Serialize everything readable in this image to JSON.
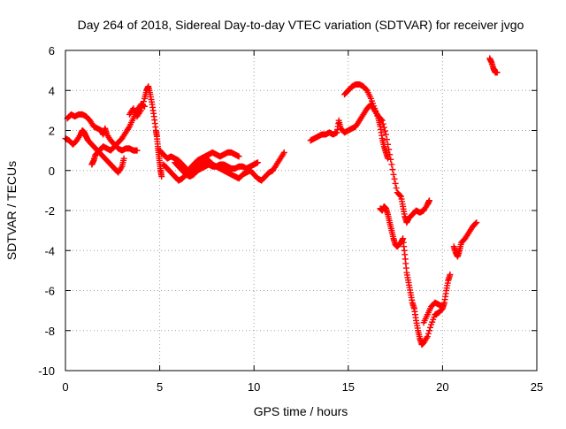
{
  "chart_data": {
    "type": "scatter",
    "title": "Day 264 of 2018, Sidereal Day-to-day VTEC variation (SDTVAR) for receiver jvgo",
    "xlabel": "GPS time / hours",
    "ylabel": "SDTVAR / TECUs",
    "xlim": [
      0,
      25
    ],
    "ylim": [
      -10,
      6
    ],
    "xticks": [
      0,
      5,
      10,
      15,
      20,
      25
    ],
    "yticks": [
      -10,
      -8,
      -6,
      -4,
      -2,
      0,
      2,
      4,
      6
    ],
    "grid": true,
    "marker": "+",
    "color": "#ff0000",
    "series": [
      {
        "values": [
          [
            0.0,
            1.6
          ],
          [
            0.2,
            1.5
          ],
          [
            0.4,
            1.3
          ],
          [
            0.6,
            1.5
          ],
          [
            0.8,
            1.8
          ],
          [
            0.9,
            2.0
          ],
          [
            1.0,
            1.9
          ],
          [
            1.1,
            1.7
          ],
          [
            1.2,
            1.5
          ],
          [
            1.4,
            1.3
          ],
          [
            1.6,
            1.1
          ],
          [
            1.8,
            0.9
          ],
          [
            2.0,
            0.7
          ],
          [
            2.2,
            0.5
          ],
          [
            2.4,
            0.3
          ],
          [
            2.6,
            0.1
          ],
          [
            2.8,
            -0.1
          ],
          [
            3.0,
            0.2
          ],
          [
            3.1,
            0.6
          ]
        ]
      },
      {
        "values": [
          [
            0.1,
            2.6
          ],
          [
            0.3,
            2.8
          ],
          [
            0.5,
            2.7
          ],
          [
            0.7,
            2.8
          ],
          [
            0.9,
            2.8
          ],
          [
            1.1,
            2.7
          ],
          [
            1.3,
            2.5
          ],
          [
            1.5,
            2.2
          ],
          [
            1.7,
            2.1
          ],
          [
            1.9,
            2.0
          ],
          [
            2.0,
            1.8
          ],
          [
            2.1,
            2.1
          ],
          [
            2.2,
            1.8
          ],
          [
            2.4,
            1.5
          ],
          [
            2.6,
            1.3
          ],
          [
            2.8,
            1.1
          ],
          [
            3.0,
            1.0
          ],
          [
            3.2,
            1.1
          ],
          [
            3.4,
            1.1
          ],
          [
            3.6,
            1.0
          ],
          [
            3.8,
            1.0
          ]
        ]
      },
      {
        "values": [
          [
            1.4,
            0.3
          ],
          [
            1.5,
            0.5
          ],
          [
            1.6,
            0.8
          ],
          [
            1.8,
            1.0
          ],
          [
            2.0,
            1.2
          ],
          [
            2.2,
            1.1
          ],
          [
            2.4,
            1.0
          ],
          [
            2.6,
            1.2
          ],
          [
            2.8,
            1.4
          ],
          [
            3.0,
            1.6
          ],
          [
            3.2,
            1.9
          ],
          [
            3.4,
            2.2
          ],
          [
            3.6,
            2.6
          ],
          [
            3.8,
            3.0
          ],
          [
            4.0,
            3.3
          ],
          [
            4.2,
            3.2
          ]
        ]
      },
      {
        "values": [
          [
            3.4,
            2.8
          ],
          [
            3.6,
            3.1
          ],
          [
            3.8,
            2.7
          ],
          [
            4.0,
            3.0
          ],
          [
            4.2,
            3.6
          ],
          [
            4.3,
            4.0
          ],
          [
            4.4,
            4.2
          ],
          [
            4.5,
            3.8
          ],
          [
            4.6,
            3.3
          ],
          [
            4.7,
            2.7
          ],
          [
            4.8,
            2.0
          ],
          [
            4.85,
            1.7
          ],
          [
            4.9,
            1.2
          ],
          [
            4.95,
            0.8
          ],
          [
            5.0,
            0.4
          ],
          [
            5.05,
            0.0
          ],
          [
            5.1,
            -0.3
          ]
        ]
      },
      {
        "values": [
          [
            5.0,
            1.0
          ],
          [
            5.2,
            0.8
          ],
          [
            5.4,
            0.6
          ],
          [
            5.6,
            0.7
          ],
          [
            5.8,
            0.6
          ],
          [
            6.0,
            0.5
          ],
          [
            6.2,
            0.3
          ],
          [
            6.4,
            0.1
          ],
          [
            6.6,
            -0.1
          ],
          [
            6.8,
            0.0
          ],
          [
            7.0,
            0.2
          ],
          [
            7.2,
            0.3
          ],
          [
            7.4,
            0.4
          ],
          [
            7.6,
            0.5
          ],
          [
            7.8,
            0.3
          ],
          [
            8.0,
            0.2
          ],
          [
            8.2,
            0.1
          ],
          [
            8.4,
            0.0
          ],
          [
            8.6,
            -0.1
          ],
          [
            8.8,
            -0.2
          ],
          [
            9.0,
            -0.3
          ],
          [
            9.2,
            -0.4
          ],
          [
            9.4,
            -0.2
          ],
          [
            9.6,
            -0.1
          ],
          [
            9.8,
            0.0
          ],
          [
            10.0,
            -0.2
          ],
          [
            10.2,
            -0.4
          ],
          [
            10.4,
            -0.5
          ],
          [
            10.6,
            -0.3
          ],
          [
            10.8,
            -0.1
          ],
          [
            11.0,
            0.0
          ],
          [
            11.2,
            0.3
          ],
          [
            11.4,
            0.6
          ],
          [
            11.6,
            0.9
          ]
        ]
      },
      {
        "values": [
          [
            5.2,
            0.3
          ],
          [
            5.4,
            0.1
          ],
          [
            5.6,
            -0.1
          ],
          [
            5.8,
            -0.3
          ],
          [
            6.0,
            -0.5
          ],
          [
            6.2,
            -0.4
          ],
          [
            6.4,
            -0.2
          ],
          [
            6.6,
            0.1
          ],
          [
            6.8,
            0.3
          ],
          [
            7.0,
            0.5
          ],
          [
            7.2,
            0.6
          ],
          [
            7.4,
            0.7
          ],
          [
            7.6,
            0.8
          ],
          [
            7.8,
            0.9
          ],
          [
            8.0,
            0.8
          ],
          [
            8.2,
            0.7
          ],
          [
            8.4,
            0.8
          ],
          [
            8.6,
            0.9
          ],
          [
            8.8,
            0.9
          ],
          [
            9.0,
            0.8
          ],
          [
            9.2,
            0.7
          ]
        ]
      },
      {
        "values": [
          [
            5.8,
            0.4
          ],
          [
            6.0,
            0.2
          ],
          [
            6.2,
            0.0
          ],
          [
            6.4,
            -0.2
          ],
          [
            6.6,
            -0.3
          ],
          [
            6.8,
            -0.2
          ],
          [
            7.0,
            0.0
          ],
          [
            7.2,
            0.1
          ],
          [
            7.4,
            0.2
          ],
          [
            7.6,
            0.3
          ],
          [
            7.8,
            0.2
          ],
          [
            8.0,
            0.2
          ],
          [
            8.2,
            0.3
          ],
          [
            8.4,
            0.3
          ],
          [
            8.6,
            0.2
          ],
          [
            8.8,
            0.1
          ],
          [
            9.0,
            0.1
          ],
          [
            9.2,
            0.2
          ],
          [
            9.4,
            0.2
          ],
          [
            9.6,
            0.1
          ],
          [
            9.8,
            0.2
          ],
          [
            10.0,
            0.3
          ],
          [
            10.2,
            0.4
          ]
        ]
      },
      {
        "values": [
          [
            13.0,
            1.5
          ],
          [
            13.2,
            1.6
          ],
          [
            13.4,
            1.7
          ],
          [
            13.6,
            1.8
          ],
          [
            13.8,
            1.8
          ],
          [
            14.0,
            1.9
          ],
          [
            14.2,
            1.8
          ],
          [
            14.4,
            1.9
          ],
          [
            14.5,
            2.5
          ],
          [
            14.6,
            2.1
          ],
          [
            14.8,
            1.9
          ],
          [
            15.0,
            2.0
          ],
          [
            15.2,
            2.1
          ],
          [
            15.4,
            2.2
          ],
          [
            15.6,
            2.5
          ],
          [
            15.8,
            2.8
          ],
          [
            16.0,
            3.1
          ],
          [
            16.2,
            3.3
          ],
          [
            16.4,
            3.0
          ],
          [
            16.6,
            2.7
          ],
          [
            16.8,
            2.5
          ],
          [
            17.0,
            1.8
          ],
          [
            17.2,
            0.8
          ],
          [
            17.4,
            -0.2
          ],
          [
            17.6,
            -1.1
          ],
          [
            17.8,
            -1.3
          ],
          [
            17.9,
            -1.8
          ],
          [
            18.0,
            -2.3
          ],
          [
            18.1,
            -2.6
          ],
          [
            18.2,
            -2.4
          ],
          [
            18.4,
            -2.2
          ],
          [
            18.6,
            -2.0
          ],
          [
            18.8,
            -2.1
          ],
          [
            19.0,
            -2.0
          ],
          [
            19.2,
            -1.7
          ],
          [
            19.3,
            -1.5
          ]
        ]
      },
      {
        "values": [
          [
            14.8,
            3.8
          ],
          [
            15.0,
            4.0
          ],
          [
            15.2,
            4.2
          ],
          [
            15.4,
            4.3
          ],
          [
            15.6,
            4.3
          ],
          [
            15.8,
            4.2
          ],
          [
            16.0,
            4.0
          ],
          [
            16.2,
            3.6
          ],
          [
            16.4,
            3.1
          ],
          [
            16.6,
            2.6
          ],
          [
            16.7,
            2.2
          ],
          [
            16.8,
            1.6
          ],
          [
            16.9,
            1.2
          ],
          [
            17.0,
            0.9
          ],
          [
            17.1,
            0.6
          ]
        ]
      },
      {
        "values": [
          [
            16.7,
            -1.9
          ],
          [
            16.8,
            -2.0
          ],
          [
            16.9,
            -1.8
          ],
          [
            17.0,
            -1.9
          ],
          [
            17.1,
            -2.2
          ],
          [
            17.2,
            -2.6
          ],
          [
            17.3,
            -3.0
          ],
          [
            17.4,
            -3.4
          ],
          [
            17.5,
            -3.7
          ],
          [
            17.6,
            -3.8
          ],
          [
            17.8,
            -3.6
          ],
          [
            17.9,
            -3.4
          ],
          [
            18.0,
            -4.2
          ],
          [
            18.1,
            -5.1
          ],
          [
            18.2,
            -5.6
          ],
          [
            18.3,
            -6.1
          ],
          [
            18.4,
            -6.6
          ],
          [
            18.5,
            -6.9
          ],
          [
            18.6,
            -7.5
          ],
          [
            18.7,
            -8.0
          ],
          [
            18.8,
            -8.4
          ],
          [
            18.9,
            -8.7
          ],
          [
            19.0,
            -8.6
          ],
          [
            19.2,
            -8.3
          ],
          [
            19.4,
            -7.7
          ],
          [
            19.6,
            -7.2
          ],
          [
            19.8,
            -7.1
          ],
          [
            20.0,
            -6.9
          ],
          [
            20.1,
            -6.6
          ],
          [
            20.2,
            -6.0
          ],
          [
            20.3,
            -5.5
          ],
          [
            20.4,
            -5.2
          ]
        ]
      },
      {
        "values": [
          [
            19.0,
            -7.6
          ],
          [
            19.2,
            -7.2
          ],
          [
            19.4,
            -6.8
          ],
          [
            19.6,
            -6.6
          ],
          [
            19.8,
            -6.7
          ],
          [
            20.0,
            -6.8
          ]
        ]
      },
      {
        "values": [
          [
            20.6,
            -3.8
          ],
          [
            20.7,
            -4.1
          ],
          [
            20.8,
            -4.3
          ],
          [
            20.9,
            -4.0
          ],
          [
            21.0,
            -3.6
          ],
          [
            21.2,
            -3.4
          ],
          [
            21.4,
            -3.1
          ],
          [
            21.6,
            -2.8
          ],
          [
            21.8,
            -2.6
          ]
        ]
      },
      {
        "values": [
          [
            22.5,
            5.6
          ],
          [
            22.6,
            5.4
          ],
          [
            22.7,
            5.1
          ],
          [
            22.8,
            4.9
          ],
          [
            22.9,
            4.9
          ]
        ]
      }
    ]
  }
}
